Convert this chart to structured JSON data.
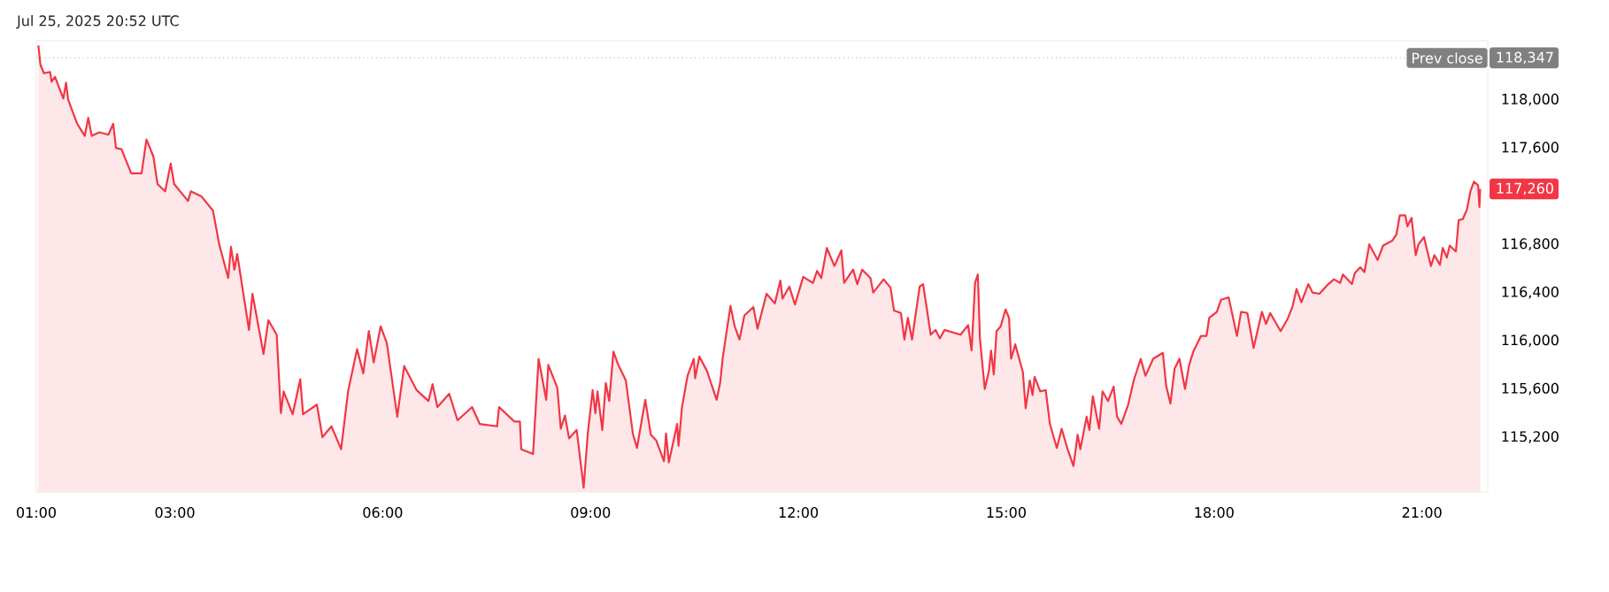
{
  "chart_data": {
    "type": "area",
    "title": "Jul 25, 2025 20:52 UTC",
    "x": [
      1.03,
      1.06,
      1.11,
      1.2,
      1.22,
      1.27,
      1.39,
      1.43,
      1.46,
      1.59,
      1.7,
      1.75,
      1.8,
      1.91,
      2.04,
      2.11,
      2.15,
      2.23,
      2.37,
      2.52,
      2.59,
      2.69,
      2.75,
      2.86,
      2.94,
      2.99,
      3.19,
      3.23,
      3.38,
      3.55,
      3.64,
      3.77,
      3.81,
      3.86,
      3.9,
      4.07,
      4.12,
      4.28,
      4.35,
      4.47,
      4.53,
      4.57,
      4.7,
      4.81,
      4.85,
      5.05,
      5.13,
      5.26,
      5.4,
      5.5,
      5.63,
      5.72,
      5.8,
      5.87,
      5.97,
      6.06,
      6.21,
      6.31,
      6.49,
      6.66,
      6.72,
      6.79,
      6.96,
      7.08,
      7.29,
      7.4,
      7.65,
      7.68,
      7.9,
      7.98,
      8.0,
      8.17,
      8.25,
      8.36,
      8.39,
      8.52,
      8.57,
      8.63,
      8.69,
      8.8,
      8.9,
      8.96,
      9.03,
      9.07,
      9.1,
      9.17,
      9.22,
      9.27,
      9.33,
      9.4,
      9.51,
      9.61,
      9.67,
      9.79,
      9.87,
      9.95,
      10.06,
      10.09,
      10.13,
      10.25,
      10.27,
      10.32,
      10.4,
      10.49,
      10.51,
      10.57,
      10.68,
      10.82,
      10.87,
      10.91,
      11.02,
      11.08,
      11.15,
      11.22,
      11.35,
      11.41,
      11.54,
      11.66,
      11.74,
      11.77,
      11.87,
      11.95,
      12.07,
      12.21,
      12.27,
      12.33,
      12.41,
      12.52,
      12.62,
      12.66,
      12.79,
      12.85,
      12.92,
      13.04,
      13.08,
      13.23,
      13.33,
      13.38,
      13.48,
      13.53,
      13.58,
      13.64,
      13.75,
      13.8,
      13.91,
      13.98,
      14.04,
      14.11,
      14.34,
      14.45,
      14.5,
      14.55,
      14.59,
      14.62,
      14.69,
      14.75,
      14.78,
      14.82,
      14.86,
      14.92,
      14.99,
      15.04,
      15.07,
      15.13,
      15.24,
      15.28,
      15.34,
      15.38,
      15.41,
      15.49,
      15.57,
      15.63,
      15.73,
      15.8,
      15.88,
      15.97,
      16.03,
      16.07,
      16.16,
      16.2,
      16.25,
      16.34,
      16.39,
      16.47,
      16.55,
      16.6,
      16.66,
      16.76,
      16.84,
      16.94,
      17.01,
      17.12,
      17.26,
      17.31,
      17.37,
      17.43,
      17.5,
      17.58,
      17.64,
      17.7,
      17.81,
      17.89,
      17.93,
      18.04,
      18.1,
      18.21,
      18.33,
      18.39,
      18.48,
      18.57,
      18.69,
      18.75,
      18.81,
      18.96,
      19.06,
      19.13,
      19.19,
      19.26,
      19.36,
      19.42,
      19.52,
      19.63,
      19.73,
      19.82,
      19.86,
      19.99,
      20.03,
      20.11,
      20.17,
      20.24,
      20.36,
      20.44,
      20.57,
      20.63,
      20.68,
      20.76,
      20.79,
      20.85,
      20.91,
      20.95,
      21.03,
      21.13,
      21.18,
      21.26,
      21.3,
      21.36,
      21.4,
      21.49,
      21.53,
      21.59,
      21.65,
      21.7,
      21.75,
      21.81,
      21.83,
      21.84
    ],
    "series": [
      {
        "color": "#f23645",
        "values": [
          118450,
          118290,
          118220,
          118230,
          118150,
          118190,
          118010,
          118140,
          118000,
          117800,
          117700,
          117850,
          117700,
          117730,
          117710,
          117800,
          117600,
          117590,
          117390,
          117390,
          117670,
          117530,
          117300,
          117240,
          117470,
          117300,
          117160,
          117240,
          117200,
          117080,
          116800,
          116520,
          116780,
          116590,
          116720,
          116090,
          116390,
          115890,
          116170,
          116050,
          115400,
          115580,
          115390,
          115680,
          115390,
          115470,
          115200,
          115290,
          115100,
          115580,
          115930,
          115730,
          116080,
          115820,
          116120,
          115980,
          115370,
          115790,
          115590,
          115500,
          115640,
          115450,
          115560,
          115340,
          115450,
          115310,
          115290,
          115450,
          115330,
          115330,
          115100,
          115060,
          115850,
          115510,
          115800,
          115610,
          115270,
          115380,
          115190,
          115260,
          114780,
          115230,
          115590,
          115400,
          115580,
          115260,
          115650,
          115500,
          115910,
          115800,
          115670,
          115230,
          115110,
          115510,
          115220,
          115170,
          115000,
          115230,
          114990,
          115310,
          115130,
          115450,
          115710,
          115850,
          115690,
          115870,
          115750,
          115510,
          115650,
          115870,
          116290,
          116120,
          116010,
          116210,
          116280,
          116100,
          116390,
          116310,
          116500,
          116350,
          116450,
          116300,
          116530,
          116480,
          116580,
          116520,
          116770,
          116620,
          116750,
          116480,
          116590,
          116470,
          116590,
          116520,
          116400,
          116510,
          116440,
          116250,
          116230,
          116010,
          116190,
          116010,
          116450,
          116470,
          116050,
          116090,
          116020,
          116090,
          116050,
          116130,
          115920,
          116480,
          116550,
          116020,
          115600,
          115750,
          115920,
          115720,
          116080,
          116120,
          116260,
          116190,
          115850,
          115970,
          115740,
          115440,
          115670,
          115550,
          115700,
          115580,
          115590,
          115310,
          115110,
          115270,
          115110,
          114960,
          115220,
          115100,
          115370,
          115260,
          115540,
          115270,
          115580,
          115500,
          115620,
          115370,
          115310,
          115470,
          115670,
          115850,
          115710,
          115850,
          115900,
          115620,
          115480,
          115770,
          115850,
          115600,
          115800,
          115910,
          116040,
          116040,
          116190,
          116240,
          116340,
          116360,
          116040,
          116240,
          116230,
          115940,
          116240,
          116140,
          116230,
          116080,
          116180,
          116280,
          116430,
          116320,
          116470,
          116400,
          116390,
          116460,
          116510,
          116480,
          116550,
          116470,
          116560,
          116610,
          116570,
          116800,
          116670,
          116790,
          116830,
          116880,
          117040,
          117040,
          116950,
          117020,
          116710,
          116800,
          116860,
          116620,
          116710,
          116630,
          116770,
          116690,
          116790,
          116740,
          117000,
          117010,
          117090,
          117240,
          117320,
          117290,
          117110,
          117260
        ]
      }
    ],
    "xlim": [
      1,
      21.95
    ],
    "ylim": [
      114745,
      118490
    ],
    "xticks": [
      {
        "value": 1,
        "label": "01:00"
      },
      {
        "value": 3,
        "label": "03:00"
      },
      {
        "value": 6,
        "label": "06:00"
      },
      {
        "value": 9,
        "label": "09:00"
      },
      {
        "value": 12,
        "label": "12:00"
      },
      {
        "value": 15,
        "label": "15:00"
      },
      {
        "value": 18,
        "label": "18:00"
      },
      {
        "value": 21,
        "label": "21:00"
      }
    ],
    "yticks": [
      {
        "value": 115200,
        "label": "115,200"
      },
      {
        "value": 115600,
        "label": "115,600"
      },
      {
        "value": 116000,
        "label": "116,000"
      },
      {
        "value": 116400,
        "label": "116,400"
      },
      {
        "value": 116800,
        "label": "116,800"
      },
      {
        "value": 117600,
        "label": "117,600"
      },
      {
        "value": 118000,
        "label": "118,000"
      }
    ],
    "ref_lines": [
      {
        "axis": "y",
        "value": 118347,
        "label": "Prev close",
        "color": "#808080",
        "line_style": "dotted"
      }
    ],
    "annotations": [
      "118,347",
      {
        "text": "117,260",
        "x": 21.84,
        "y": 117260
      }
    ]
  }
}
